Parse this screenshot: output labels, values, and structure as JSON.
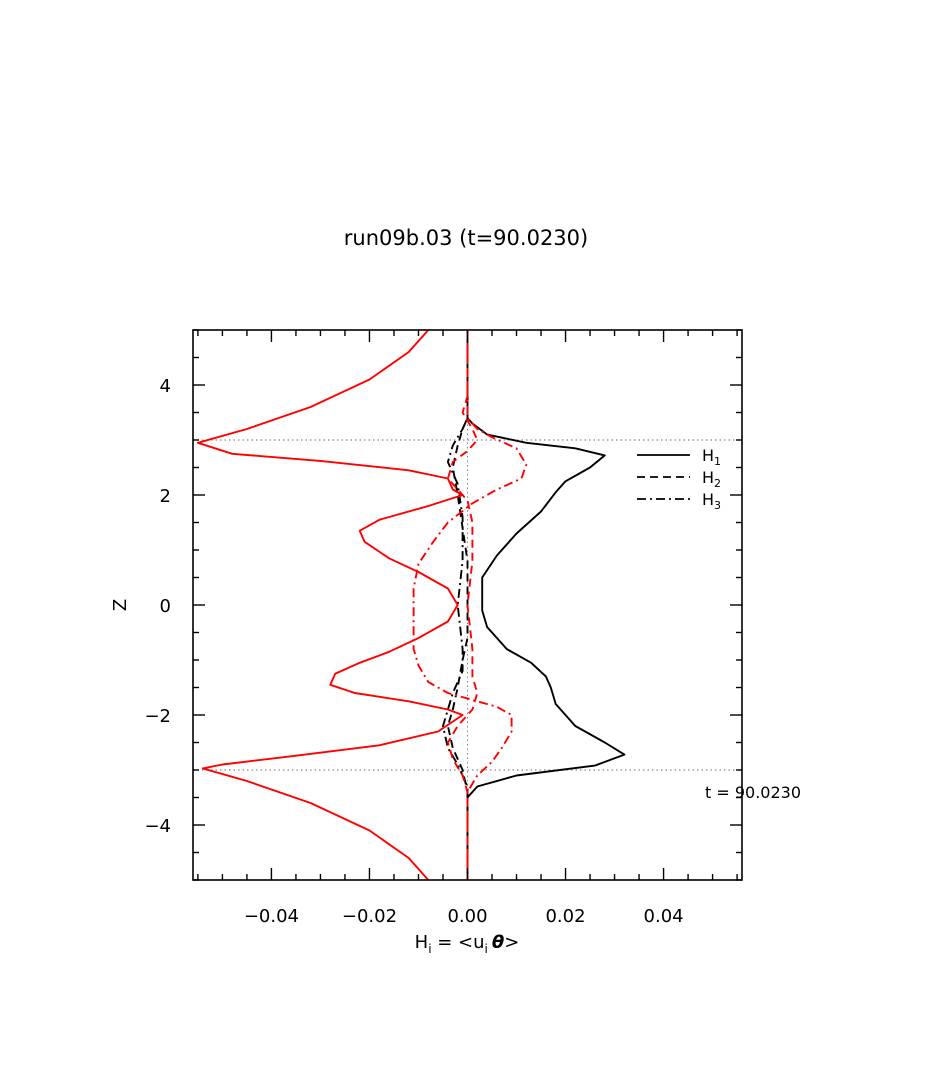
{
  "chart_data": {
    "type": "line",
    "title": "run09b.03 (t=90.0230)",
    "xlabel": {
      "base": "H",
      "sub": "i",
      "mid": " = <u",
      "sub2": "i",
      "theta": "θ",
      "end": ">"
    },
    "ylabel": "Z",
    "xlim": [
      -0.056,
      0.056
    ],
    "ylim": [
      -5,
      5
    ],
    "x_ticks": [
      -0.04,
      -0.02,
      0.0,
      0.02,
      0.04
    ],
    "x_tick_labels": [
      "−0.04",
      "−0.02",
      "0.00",
      "0.02",
      "0.04"
    ],
    "y_ticks": [
      -4,
      -2,
      0,
      2,
      4
    ],
    "y_tick_labels": [
      "−4",
      "−2",
      "0",
      "2",
      "4"
    ],
    "reference_lines_z": [
      3,
      -3
    ],
    "annotation": "t = 90.0230",
    "legend": {
      "placement": "top-right",
      "entries": [
        {
          "base": "H",
          "sub": "1",
          "style": "solid"
        },
        {
          "base": "H",
          "sub": "2",
          "style": "dashed"
        },
        {
          "base": "H",
          "sub": "3",
          "style": "dashdot"
        }
      ]
    },
    "series": [
      {
        "color": "#000000",
        "style": "solid",
        "points": [
          [
            0.0,
            5
          ],
          [
            0.0,
            4
          ],
          [
            0.0,
            3.4
          ],
          [
            0.001,
            3.3
          ],
          [
            0.004,
            3.1
          ],
          [
            0.012,
            2.95
          ],
          [
            0.022,
            2.85
          ],
          [
            0.028,
            2.72
          ],
          [
            0.025,
            2.5
          ],
          [
            0.02,
            2.25
          ],
          [
            0.018,
            2.05
          ],
          [
            0.015,
            1.7
          ],
          [
            0.01,
            1.3
          ],
          [
            0.006,
            0.9
          ],
          [
            0.003,
            0.5
          ],
          [
            0.003,
            0.2
          ],
          [
            0.003,
            -0.1
          ],
          [
            0.004,
            -0.4
          ],
          [
            0.008,
            -0.8
          ],
          [
            0.013,
            -1.05
          ],
          [
            0.016,
            -1.3
          ],
          [
            0.017,
            -1.5
          ],
          [
            0.018,
            -1.8
          ],
          [
            0.022,
            -2.2
          ],
          [
            0.028,
            -2.5
          ],
          [
            0.032,
            -2.72
          ],
          [
            0.026,
            -2.92
          ],
          [
            0.01,
            -3.1
          ],
          [
            0.002,
            -3.3
          ],
          [
            0.0,
            -3.5
          ],
          [
            0.0,
            -4
          ],
          [
            0.0,
            -5
          ]
        ]
      },
      {
        "color": "#000000",
        "style": "dashed",
        "points": [
          [
            0.0,
            5
          ],
          [
            0.0,
            3.4
          ],
          [
            -0.001,
            3.2
          ],
          [
            -0.002,
            2.9
          ],
          [
            -0.003,
            2.5
          ],
          [
            -0.002,
            2.0
          ],
          [
            -0.001,
            1.4
          ],
          [
            0.0,
            0.8
          ],
          [
            0.0,
            0.0
          ],
          [
            0.0,
            -0.6
          ],
          [
            -0.001,
            -1.0
          ],
          [
            -0.002,
            -1.5
          ],
          [
            -0.003,
            -1.9
          ],
          [
            -0.004,
            -2.2
          ],
          [
            -0.003,
            -2.6
          ],
          [
            -0.001,
            -3.0
          ],
          [
            0.0,
            -3.4
          ],
          [
            0.0,
            -5
          ]
        ]
      },
      {
        "color": "#000000",
        "style": "dashdot",
        "points": [
          [
            0.0,
            5
          ],
          [
            0.0,
            3.4
          ],
          [
            -0.001,
            3.2
          ],
          [
            -0.003,
            2.9
          ],
          [
            -0.004,
            2.6
          ],
          [
            -0.002,
            2.2
          ],
          [
            -0.001,
            1.6
          ],
          [
            -0.001,
            0.8
          ],
          [
            -0.002,
            0.0
          ],
          [
            -0.001,
            -0.8
          ],
          [
            -0.001,
            -1.2
          ],
          [
            -0.003,
            -1.6
          ],
          [
            -0.004,
            -1.9
          ],
          [
            -0.005,
            -2.2
          ],
          [
            -0.004,
            -2.6
          ],
          [
            -0.002,
            -2.9
          ],
          [
            0.0,
            -3.3
          ],
          [
            0.0,
            -5
          ]
        ]
      },
      {
        "color": "#ff0000",
        "style": "solid",
        "points": [
          [
            -0.008,
            5
          ],
          [
            -0.012,
            4.6
          ],
          [
            -0.02,
            4.1
          ],
          [
            -0.032,
            3.6
          ],
          [
            -0.045,
            3.2
          ],
          [
            -0.055,
            2.95
          ],
          [
            -0.048,
            2.75
          ],
          [
            -0.03,
            2.62
          ],
          [
            -0.012,
            2.45
          ],
          [
            -0.004,
            2.3
          ],
          [
            -0.003,
            2.1
          ],
          [
            -0.001,
            2.0
          ],
          [
            -0.008,
            1.8
          ],
          [
            -0.018,
            1.55
          ],
          [
            -0.022,
            1.35
          ],
          [
            -0.021,
            1.15
          ],
          [
            -0.016,
            0.85
          ],
          [
            -0.01,
            0.6
          ],
          [
            -0.004,
            0.3
          ],
          [
            -0.002,
            0.0
          ],
          [
            -0.004,
            -0.3
          ],
          [
            -0.01,
            -0.6
          ],
          [
            -0.016,
            -0.85
          ],
          [
            -0.022,
            -1.05
          ],
          [
            -0.027,
            -1.25
          ],
          [
            -0.028,
            -1.45
          ],
          [
            -0.023,
            -1.6
          ],
          [
            -0.012,
            -1.75
          ],
          [
            -0.004,
            -1.9
          ],
          [
            -0.001,
            -2.0
          ],
          [
            -0.006,
            -2.3
          ],
          [
            -0.018,
            -2.55
          ],
          [
            -0.036,
            -2.75
          ],
          [
            -0.05,
            -2.9
          ],
          [
            -0.054,
            -2.97
          ],
          [
            -0.045,
            -3.2
          ],
          [
            -0.032,
            -3.6
          ],
          [
            -0.02,
            -4.1
          ],
          [
            -0.012,
            -4.6
          ],
          [
            -0.008,
            -5
          ]
        ]
      },
      {
        "color": "#ff0000",
        "style": "dashed",
        "points": [
          [
            0.0,
            5
          ],
          [
            0.0,
            3.8
          ],
          [
            -0.001,
            3.5
          ],
          [
            0.001,
            3.2
          ],
          [
            0.002,
            3.0
          ],
          [
            0.0,
            2.8
          ],
          [
            -0.003,
            2.6
          ],
          [
            -0.004,
            2.3
          ],
          [
            -0.002,
            2.1
          ],
          [
            0.0,
            1.9
          ],
          [
            0.001,
            1.5
          ],
          [
            0.001,
            0.8
          ],
          [
            0.0,
            0.0
          ],
          [
            0.001,
            -0.8
          ],
          [
            0.001,
            -1.3
          ],
          [
            0.002,
            -1.6
          ],
          [
            0.001,
            -1.9
          ],
          [
            -0.002,
            -2.2
          ],
          [
            -0.004,
            -2.5
          ],
          [
            -0.003,
            -2.8
          ],
          [
            -0.001,
            -3.1
          ],
          [
            0.0,
            -3.4
          ],
          [
            0.0,
            -5
          ]
        ]
      },
      {
        "color": "#ff0000",
        "style": "dashdot",
        "points": [
          [
            0.0,
            5
          ],
          [
            0.0,
            3.4
          ],
          [
            0.002,
            3.2
          ],
          [
            0.005,
            3.05
          ],
          [
            0.01,
            2.85
          ],
          [
            0.012,
            2.55
          ],
          [
            0.011,
            2.3
          ],
          [
            0.006,
            2.1
          ],
          [
            0.001,
            1.85
          ],
          [
            -0.004,
            1.5
          ],
          [
            -0.007,
            1.15
          ],
          [
            -0.01,
            0.75
          ],
          [
            -0.011,
            0.3
          ],
          [
            -0.011,
            -0.3
          ],
          [
            -0.011,
            -0.8
          ],
          [
            -0.01,
            -1.1
          ],
          [
            -0.008,
            -1.4
          ],
          [
            -0.004,
            -1.6
          ],
          [
            0.002,
            -1.75
          ],
          [
            0.006,
            -1.85
          ],
          [
            0.009,
            -2.0
          ],
          [
            0.009,
            -2.3
          ],
          [
            0.007,
            -2.6
          ],
          [
            0.005,
            -2.85
          ],
          [
            0.002,
            -3.1
          ],
          [
            0.0,
            -3.4
          ],
          [
            0.0,
            -5
          ]
        ]
      }
    ]
  }
}
